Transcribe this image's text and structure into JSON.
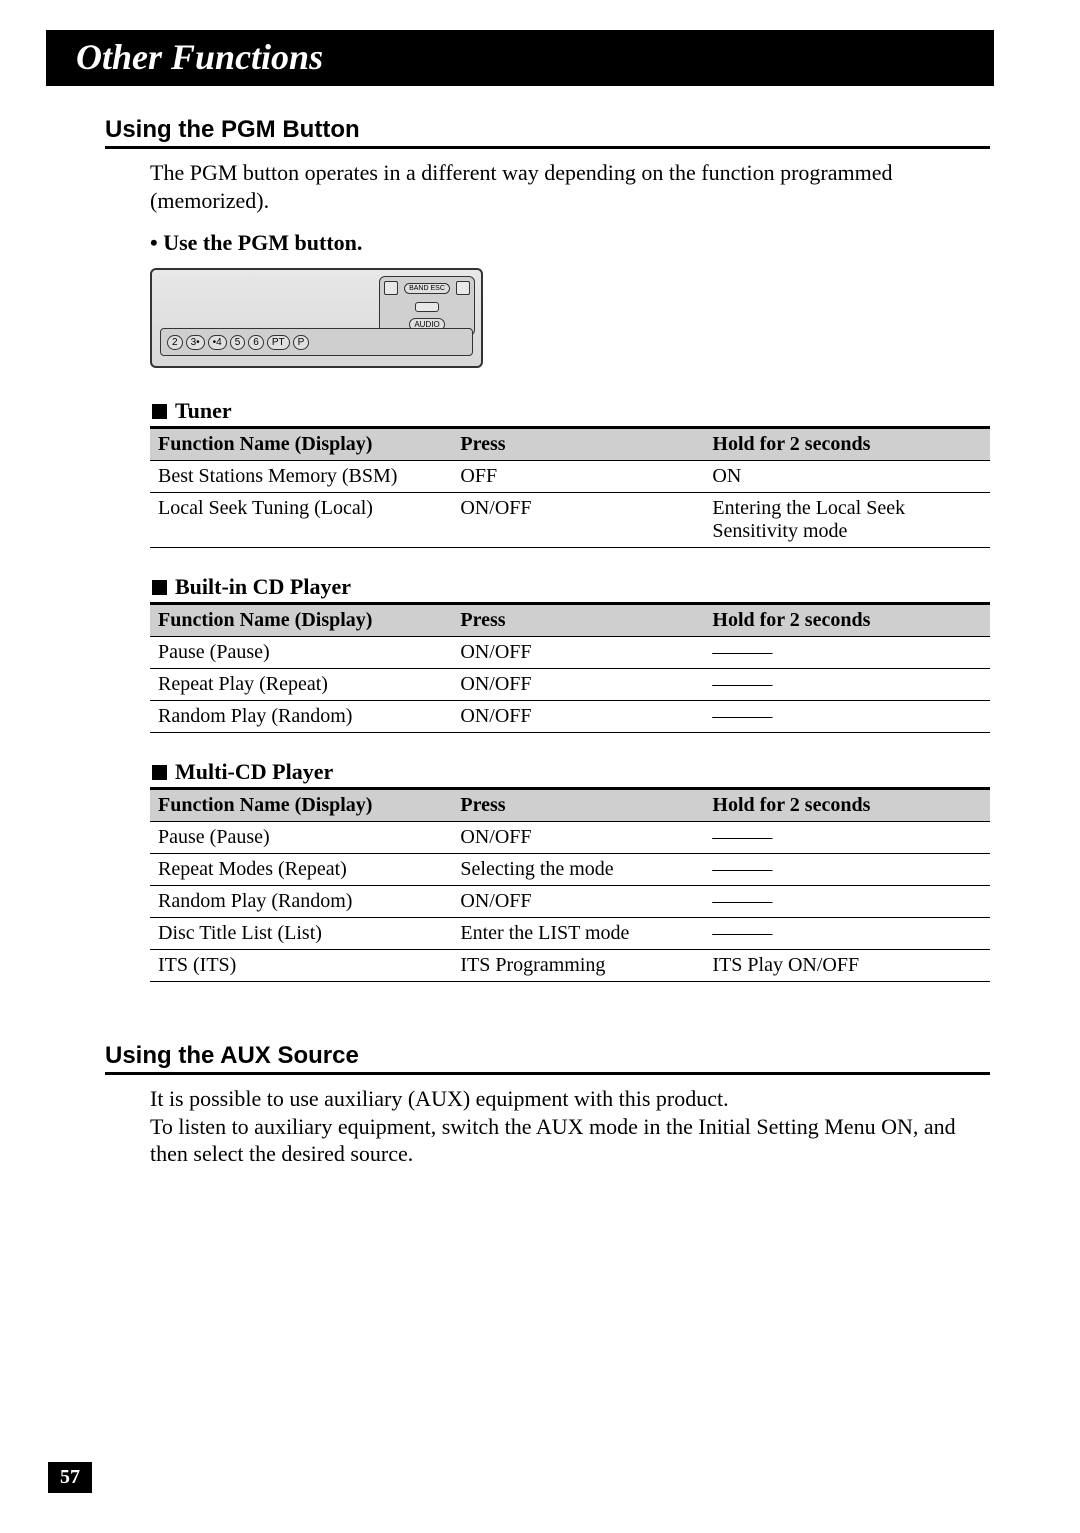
{
  "title": "Other Functions",
  "page_number": "57",
  "colors": {
    "header_bg": "#cfcfcf",
    "text": "#000000",
    "page_bg": "#ffffff"
  },
  "pgm": {
    "heading": "Using the PGM Button",
    "intro": "The PGM button operates in a different way depending on the function programmed (memorized).",
    "bullet": "• Use the PGM button.",
    "panel_buttons": [
      "2",
      "3•",
      "•4",
      "5",
      "6",
      "PT",
      "P"
    ],
    "panel_side_labels": {
      "top": "BAND ESC",
      "bottom": "AUDIO"
    }
  },
  "table_headers": {
    "col1": "Function Name (Display)",
    "col2": "Press",
    "col3": "Hold for 2 seconds"
  },
  "tuner": {
    "title": "Tuner",
    "rows": [
      {
        "name": "Best Stations Memory (BSM)",
        "press": "OFF",
        "hold": "ON"
      },
      {
        "name": "Local Seek Tuning (Local)",
        "press": "ON/OFF",
        "hold": "Entering the Local Seek Sensitivity mode"
      }
    ]
  },
  "cd": {
    "title": "Built-in CD Player",
    "rows": [
      {
        "name": "Pause (Pause)",
        "press": "ON/OFF",
        "hold": "———"
      },
      {
        "name": "Repeat Play (Repeat)",
        "press": "ON/OFF",
        "hold": "———"
      },
      {
        "name": "Random Play (Random)",
        "press": "ON/OFF",
        "hold": "———"
      }
    ]
  },
  "multi": {
    "title": "Multi-CD Player",
    "rows": [
      {
        "name": "Pause (Pause)",
        "press": "ON/OFF",
        "hold": "———"
      },
      {
        "name": "Repeat Modes (Repeat)",
        "press": "Selecting the mode",
        "hold": "———"
      },
      {
        "name": "Random Play (Random)",
        "press": "ON/OFF",
        "hold": "———"
      },
      {
        "name": "Disc Title List (List)",
        "press": "Enter the LIST mode",
        "hold": "———"
      },
      {
        "name": "ITS (ITS)",
        "press": "ITS Programming",
        "hold": "ITS Play ON/OFF"
      }
    ]
  },
  "aux": {
    "heading": "Using the AUX Source",
    "text": "It is possible to use auxiliary (AUX) equipment with this product.\nTo listen to auxiliary equipment, switch the AUX mode in the Initial Setting Menu ON, and then select the desired source."
  }
}
